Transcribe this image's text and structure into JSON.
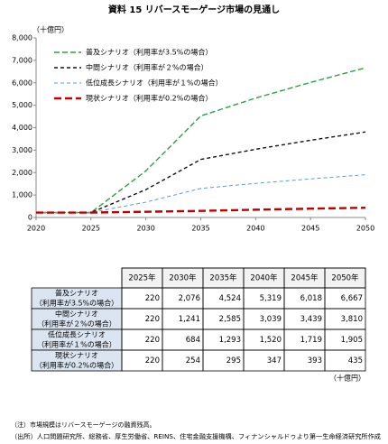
{
  "chart_data": {
    "type": "line",
    "title": "資料 15 リバースモーゲージ市場の見通し",
    "y_unit": "（十億円）",
    "x": [
      2020,
      2025,
      2030,
      2035,
      2040,
      2045,
      2050
    ],
    "xlim": [
      2020,
      2050
    ],
    "xticks": [
      2020,
      2025,
      2030,
      2035,
      2040,
      2045,
      2050
    ],
    "ylim": [
      0,
      8000
    ],
    "yticks": [
      0,
      {
        "value": 1000,
        "label": "1,000"
      },
      {
        "value": 2000,
        "label": "2,000"
      },
      {
        "value": 3000,
        "label": "3,000"
      },
      {
        "value": 4000,
        "label": "4,000"
      },
      {
        "value": 5000,
        "label": "5,000"
      },
      {
        "value": 6000,
        "label": "6,000"
      },
      {
        "value": 7000,
        "label": "7,000"
      },
      {
        "value": 8000,
        "label": "8,000"
      }
    ],
    "legend": "upper-left",
    "series": [
      {
        "name": "普及シナリオ（利用率が3.5%の場合）",
        "color": "#2e9e48",
        "values": [
          220,
          220,
          2076,
          4524,
          5319,
          6018,
          6667
        ]
      },
      {
        "name": "中間シナリオ（利用率が２%の場合）",
        "color": "#111111",
        "values": [
          220,
          220,
          1241,
          2585,
          3039,
          3439,
          3810
        ]
      },
      {
        "name": "低位成長シナリオ（利用率が１%の場合）",
        "color": "#5b9bd5",
        "values": [
          220,
          220,
          684,
          1293,
          1520,
          1719,
          1905
        ]
      },
      {
        "name": "現状シナリオ（利用率が0.2%の場合）",
        "color": "#c00000",
        "values": [
          220,
          220,
          254,
          295,
          347,
          393,
          435
        ]
      }
    ]
  },
  "table": {
    "columns": [
      "2025年",
      "2030年",
      "2035年",
      "2040年",
      "2045年",
      "2050年"
    ],
    "rows": [
      {
        "label": [
          "普及シナリオ",
          "（利用率が3.5%の場合）"
        ],
        "values": [
          "220",
          "2,076",
          "4,524",
          "5,319",
          "6,018",
          "6,667"
        ]
      },
      {
        "label": [
          "中間シナリオ",
          "（利用率が２%の場合）"
        ],
        "values": [
          "220",
          "1,241",
          "2,585",
          "3,039",
          "3,439",
          "3,810"
        ]
      },
      {
        "label": [
          "低位成長シナリオ",
          "（利用率が１%の場合）"
        ],
        "values": [
          "220",
          "684",
          "1,293",
          "1,520",
          "1,719",
          "1,905"
        ]
      },
      {
        "label": [
          "現状シナリオ",
          "（利用率が0.2%の場合）"
        ],
        "values": [
          "220",
          "254",
          "295",
          "347",
          "393",
          "435"
        ]
      }
    ],
    "unit": "（十億円）"
  },
  "notes": [
    "（注）市場規模はリバースモーゲージの融資残高。",
    "（出所）人口問題研究所、総務省、厚生労働省、REINS、住宅金融支援機構、フィナンシャルドゥより第一生命経済研究所作成"
  ]
}
